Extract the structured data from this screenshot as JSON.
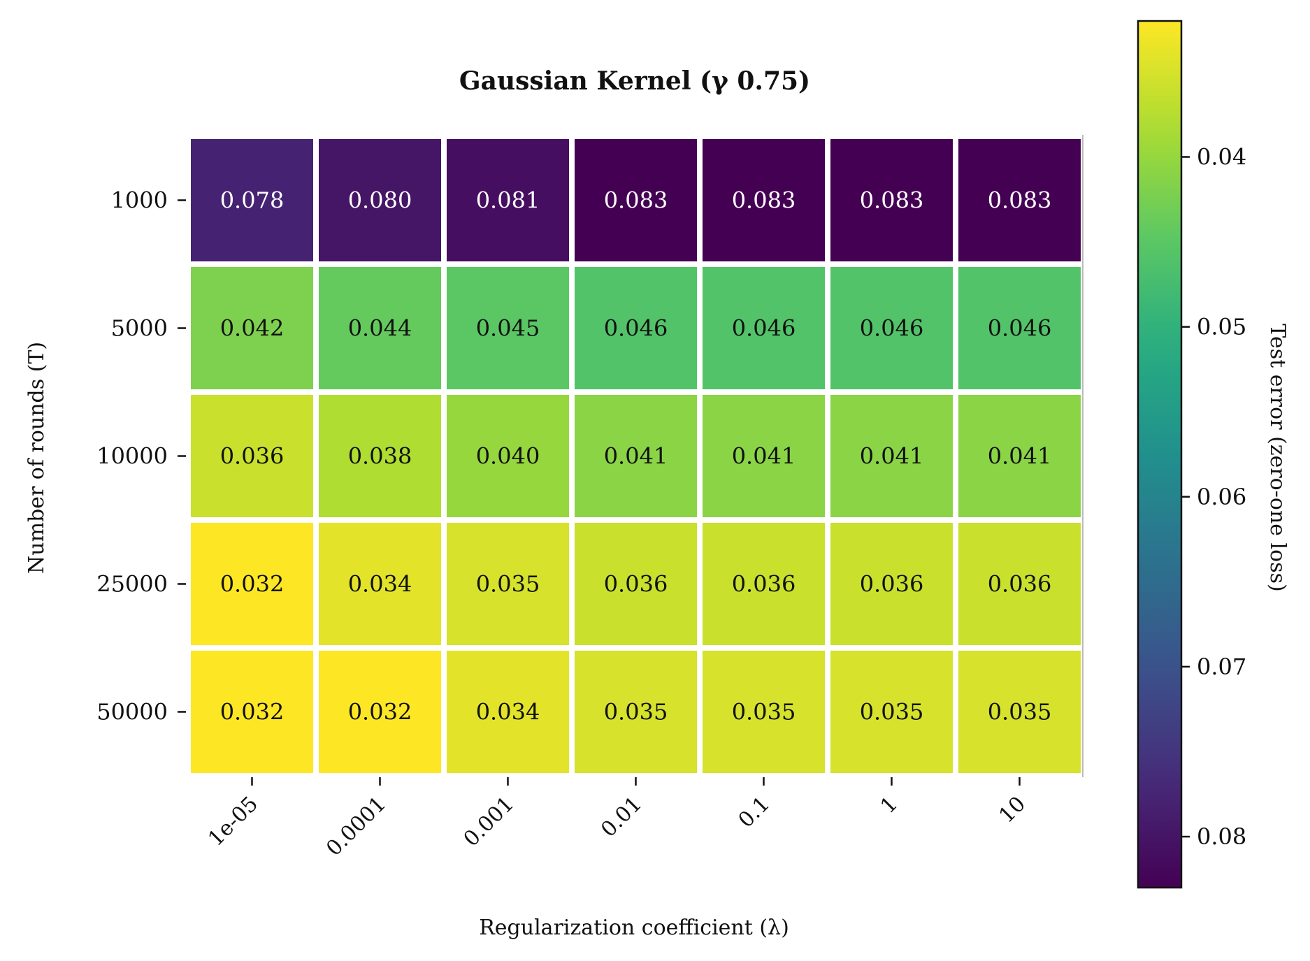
{
  "chart_data": {
    "type": "heatmap",
    "title": "Gaussian Kernel (γ 0.75)",
    "xlabel": "Regularization coefficient (λ)",
    "ylabel": "Number of rounds (T)",
    "x_categories": [
      "1e-05",
      "0.0001",
      "0.001",
      "0.01",
      "0.1",
      "1",
      "10"
    ],
    "y_categories": [
      "1000",
      "5000",
      "10000",
      "25000",
      "50000"
    ],
    "values": [
      [
        0.078,
        0.08,
        0.081,
        0.083,
        0.083,
        0.083,
        0.083
      ],
      [
        0.042,
        0.044,
        0.045,
        0.046,
        0.046,
        0.046,
        0.046
      ],
      [
        0.036,
        0.038,
        0.04,
        0.041,
        0.041,
        0.041,
        0.041
      ],
      [
        0.032,
        0.034,
        0.035,
        0.036,
        0.036,
        0.036,
        0.036
      ],
      [
        0.032,
        0.032,
        0.034,
        0.035,
        0.035,
        0.035,
        0.035
      ]
    ],
    "colorbar": {
      "label": "Test error (zero-one loss)",
      "range": [
        0.032,
        0.083
      ],
      "ticks": [
        0.04,
        0.05,
        0.06,
        0.07,
        0.08
      ],
      "tick_labels": [
        "0.04",
        "0.05",
        "0.06",
        "0.07",
        "0.08"
      ],
      "inverted": true,
      "colormap": "viridis"
    }
  }
}
